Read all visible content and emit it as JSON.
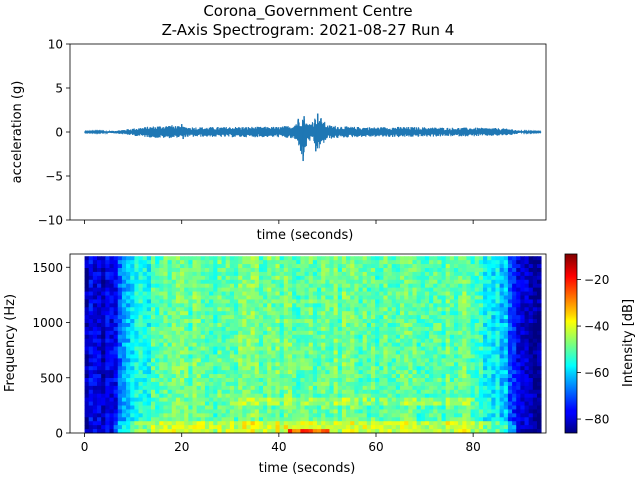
{
  "figure": {
    "title_line1": "Corona_Government Centre",
    "title_line2": "Z-Axis Spectrogram: 2021-08-27 Run 4"
  },
  "chart_data": [
    {
      "type": "line",
      "panel": "top",
      "xlabel": "time (seconds)",
      "ylabel": "acceleration (g)",
      "xlim": [
        -3,
        95
      ],
      "ylim": [
        -10,
        10
      ],
      "yticks": [
        -10,
        -5,
        0,
        5,
        10
      ],
      "xticks": [
        0,
        20,
        40,
        60,
        80
      ],
      "x_ticklabels_shown": false,
      "series_color": "#1f77b4",
      "envelope": {
        "x": [
          0,
          5,
          7,
          9,
          12,
          15,
          18,
          20,
          25,
          30,
          35,
          40,
          43,
          44,
          45,
          46,
          47,
          48,
          50,
          55,
          60,
          65,
          70,
          75,
          80,
          85,
          88,
          90,
          94
        ],
        "upper": [
          0.05,
          0.1,
          0.2,
          0.35,
          0.55,
          0.7,
          0.8,
          0.6,
          0.55,
          0.6,
          0.6,
          0.6,
          0.8,
          1.5,
          1.8,
          0.9,
          1.4,
          2.1,
          0.8,
          0.6,
          0.55,
          0.6,
          0.55,
          0.5,
          0.5,
          0.45,
          0.35,
          0.1,
          0.05
        ],
        "lower": [
          -0.05,
          -0.1,
          -0.2,
          -0.35,
          -0.55,
          -0.7,
          -0.7,
          -0.6,
          -0.55,
          -0.6,
          -0.6,
          -0.6,
          -0.8,
          -1.4,
          -3.3,
          -1.0,
          -1.2,
          -2.2,
          -0.8,
          -0.6,
          -0.55,
          -0.6,
          -0.55,
          -0.5,
          -0.5,
          -0.45,
          -0.35,
          -0.1,
          -0.05
        ]
      }
    },
    {
      "type": "heatmap",
      "panel": "bottom",
      "xlabel": "time (seconds)",
      "ylabel": "Frequency (Hz)",
      "xlim": [
        -3,
        95
      ],
      "ylim": [
        0,
        1620
      ],
      "xticks": [
        0,
        20,
        40,
        60,
        80
      ],
      "yticks": [
        0,
        500,
        1000,
        1500
      ],
      "data_extent_x": [
        0,
        94
      ],
      "data_extent_y": [
        0,
        1600
      ],
      "colormap": "jet",
      "colorbar": {
        "label": "Intensity [dB]",
        "range": [
          -86,
          -9
        ],
        "ticks": [
          -80,
          -60,
          -40,
          -20
        ]
      },
      "profile": {
        "x": [
          0,
          6,
          7,
          9,
          12,
          15,
          20,
          30,
          40,
          50,
          60,
          70,
          78,
          82,
          86,
          88,
          90,
          94
        ],
        "mean_db": [
          -80,
          -78,
          -70,
          -62,
          -56,
          -52,
          -50,
          -50,
          -49,
          -49,
          -50,
          -50,
          -50,
          -54,
          -60,
          -70,
          -80,
          -84
        ]
      }
    }
  ]
}
